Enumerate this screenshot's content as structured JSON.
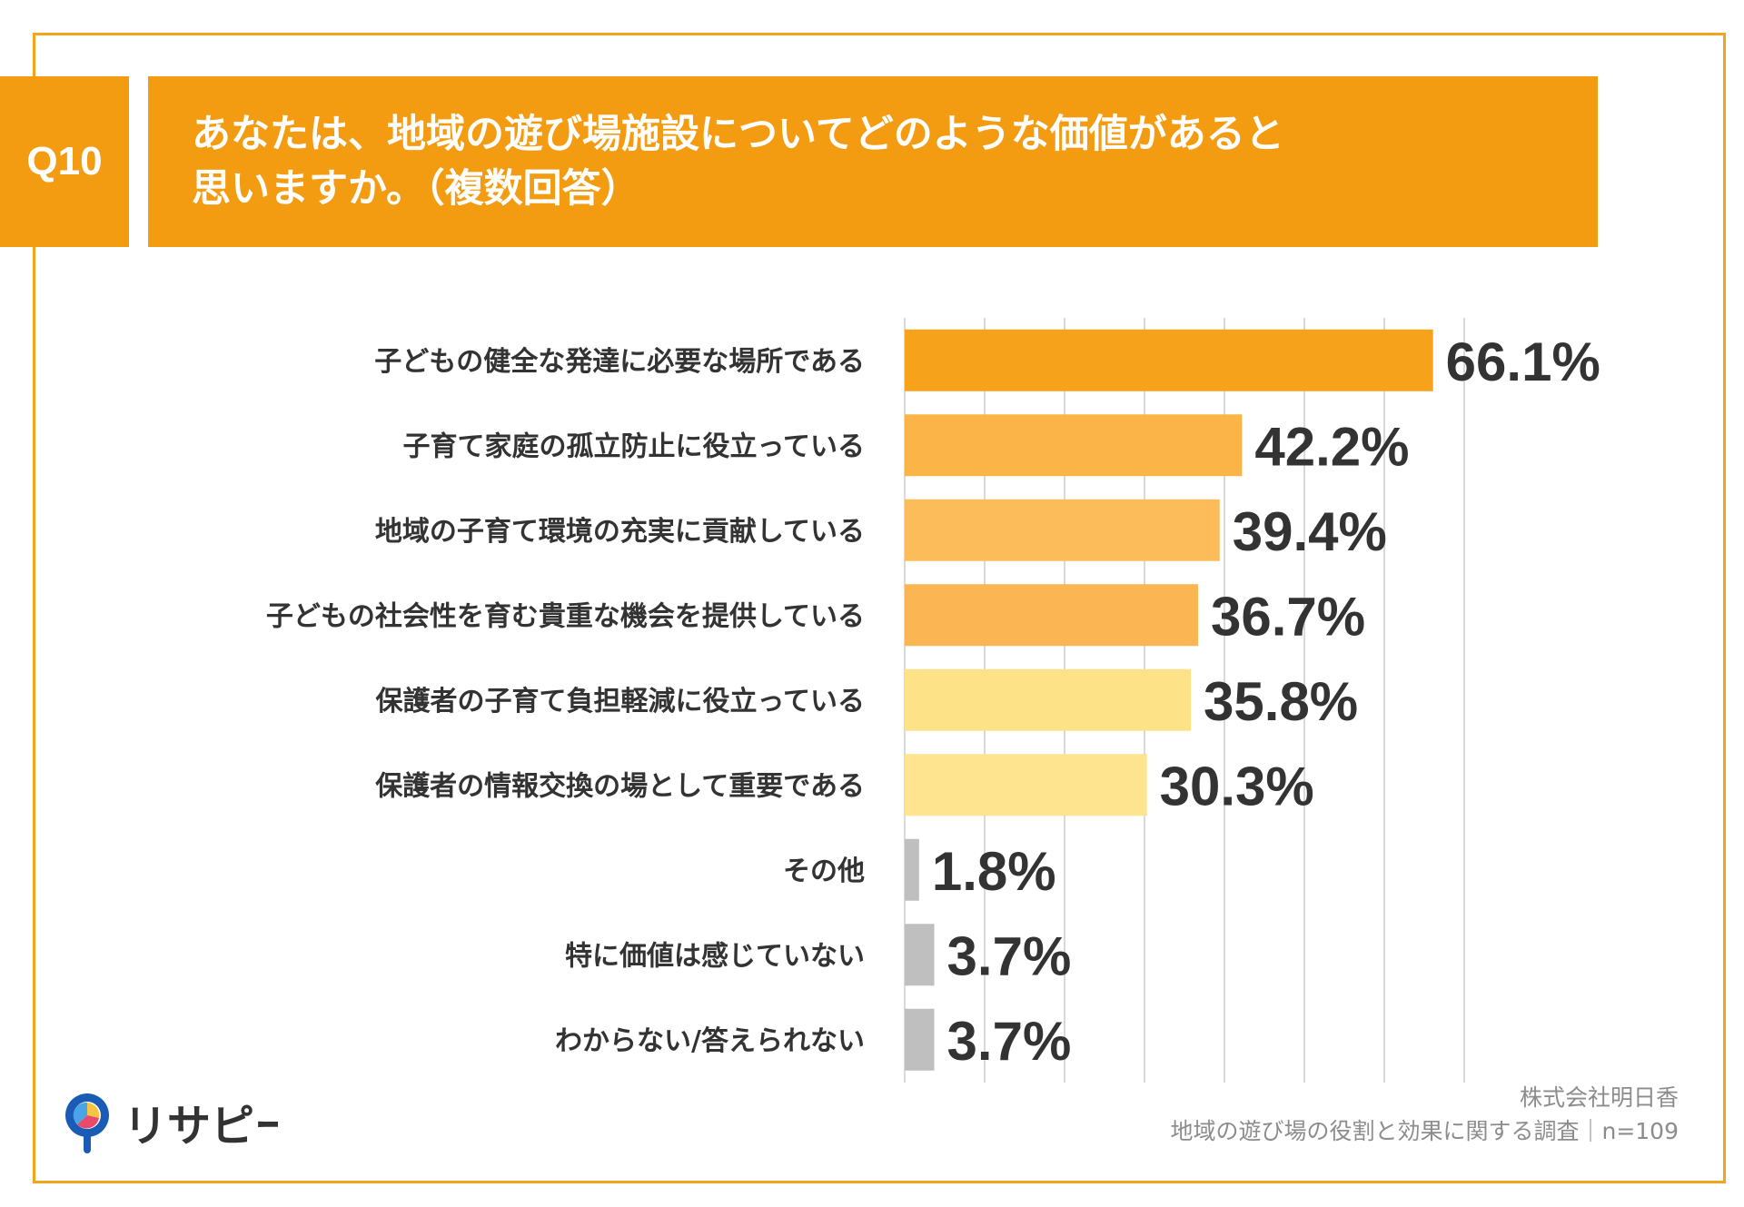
{
  "header": {
    "badge": "Q10",
    "question_line1": "あなたは、地域の遊び場施設についてどのような価値があると",
    "question_line2": "思いますか。（複数回答）"
  },
  "chart_data": {
    "type": "bar",
    "orientation": "horizontal",
    "categories": [
      "子どもの健全な発達に必要な場所である",
      "子育て家庭の孤立防止に役立っている",
      "地域の子育て環境の充実に貢献している",
      "子どもの社会性を育む貴重な機会を提供している",
      "保護者の子育て負担軽減に役立っている",
      "保護者の情報交換の場として重要である",
      "その他",
      "特に価値は感じていない",
      "わからない/答えられない"
    ],
    "values": [
      66.1,
      42.2,
      39.4,
      36.7,
      35.8,
      30.3,
      1.8,
      3.7,
      3.7
    ],
    "value_labels": [
      "66.1%",
      "42.2%",
      "39.4%",
      "36.7%",
      "35.8%",
      "30.3%",
      "1.8%",
      "3.7%",
      "3.7%"
    ],
    "bar_colors": [
      "#f7a21b",
      "#fbb448",
      "#fbbc59",
      "#fbb552",
      "#fee287",
      "#fee48f",
      "#bfbfbf",
      "#bfbfbf",
      "#bfbfbf"
    ],
    "xlim": [
      0,
      70
    ],
    "grid": true,
    "gridline_color": "#d9d9d9"
  },
  "footer": {
    "company": "株式会社明日香",
    "survey": "地域の遊び場の役割と効果に関する調査｜n=109"
  },
  "brand": {
    "logo_text": "リサピー",
    "accent": "#f39c12",
    "frame_color": "#f3a41d"
  }
}
